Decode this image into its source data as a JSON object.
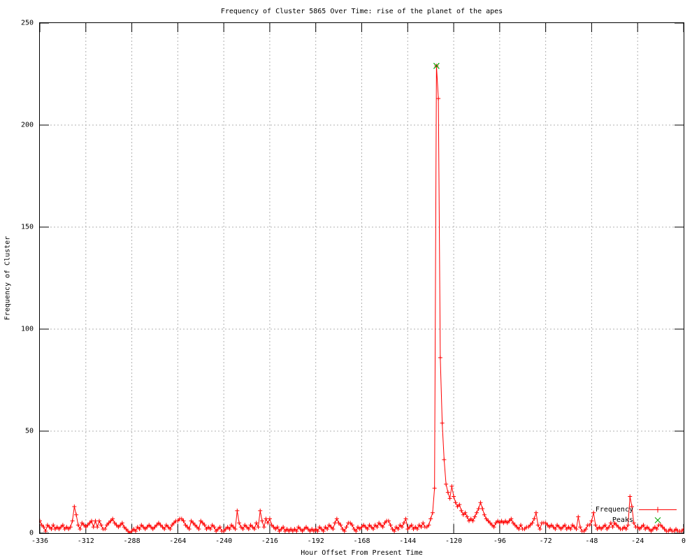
{
  "chart_data": {
    "type": "line",
    "title": "Frequency of Cluster 5865 Over Time: rise of the planet of the apes",
    "xlabel": "Hour Offset From Present Time",
    "ylabel": "Frequency of Cluster",
    "xlim": [
      -336,
      0
    ],
    "ylim": [
      0,
      250
    ],
    "x_ticks": [
      -336,
      -312,
      -288,
      -264,
      -240,
      -216,
      -192,
      -168,
      -144,
      -120,
      -96,
      -72,
      -48,
      -24,
      0
    ],
    "y_ticks": [
      0,
      50,
      100,
      150,
      200,
      250
    ],
    "grid": true,
    "legend_position": "bottom-right-inside",
    "colors": {
      "frequency": "#ff0000",
      "peaks": "#00a400",
      "grid": "#b0b0b0",
      "axis": "#000000",
      "background": "#ffffff"
    },
    "series": [
      {
        "name": "Frequency",
        "style": "linespoints",
        "marker": "plus",
        "color": "#ff0000",
        "x_start": -336,
        "x_step": 1,
        "values": [
          6,
          4,
          3,
          1,
          4,
          3,
          2,
          4,
          2,
          3,
          2,
          3,
          4,
          2,
          3,
          2,
          3,
          6,
          13,
          9,
          4,
          2,
          5,
          4,
          3,
          4,
          5,
          6,
          3,
          6,
          3,
          6,
          4,
          2,
          2,
          4,
          5,
          6,
          7,
          5,
          4,
          3,
          4,
          5,
          3,
          2,
          1,
          0,
          1,
          2,
          1,
          3,
          2,
          4,
          3,
          2,
          3,
          4,
          3,
          2,
          3,
          4,
          5,
          4,
          3,
          2,
          4,
          3,
          2,
          4,
          5,
          6,
          6,
          7,
          7,
          6,
          4,
          3,
          2,
          6,
          5,
          4,
          3,
          2,
          6,
          5,
          4,
          2,
          3,
          2,
          4,
          3,
          1,
          2,
          3,
          1,
          1,
          2,
          3,
          2,
          4,
          3,
          2,
          11,
          5,
          3,
          2,
          4,
          3,
          2,
          4,
          3,
          2,
          5,
          3,
          11,
          6,
          3,
          7,
          5,
          7,
          4,
          3,
          2,
          3,
          1,
          2,
          3,
          1,
          2,
          1,
          2,
          1,
          2,
          1,
          3,
          2,
          1,
          2,
          3,
          2,
          1,
          2,
          1,
          2,
          1,
          3,
          2,
          1,
          3,
          2,
          4,
          3,
          2,
          5,
          7,
          5,
          4,
          2,
          1,
          3,
          5,
          5,
          4,
          2,
          1,
          3,
          2,
          3,
          4,
          3,
          2,
          4,
          3,
          2,
          4,
          3,
          5,
          4,
          3,
          5,
          6,
          6,
          4,
          2,
          1,
          3,
          2,
          4,
          3,
          5,
          7,
          2,
          3,
          4,
          2,
          3,
          2,
          4,
          3,
          5,
          3,
          3,
          4,
          7,
          10,
          22,
          229,
          213,
          86,
          54,
          36,
          24,
          20,
          17,
          23,
          18,
          15,
          13,
          14,
          11,
          9,
          10,
          8,
          6,
          7,
          6,
          8,
          10,
          12,
          15,
          12,
          9,
          7,
          6,
          5,
          4,
          3,
          5,
          6,
          5,
          6,
          5,
          6,
          5,
          6,
          7,
          5,
          4,
          3,
          2,
          4,
          2,
          2,
          3,
          3,
          4,
          5,
          7,
          10,
          4,
          2,
          5,
          5,
          5,
          4,
          3,
          4,
          3,
          2,
          4,
          3,
          2,
          3,
          4,
          2,
          3,
          2,
          4,
          3,
          2,
          8,
          3,
          1,
          1,
          2,
          4,
          4,
          6,
          10,
          4,
          2,
          3,
          2,
          3,
          4,
          2,
          3,
          5,
          3,
          5,
          4,
          3,
          2,
          2,
          3,
          2,
          4,
          18,
          13,
          5,
          3,
          3,
          2,
          3,
          4,
          2,
          3,
          2,
          1,
          2,
          3,
          2,
          4,
          4,
          3,
          2,
          1,
          1,
          2,
          1,
          1,
          2,
          1,
          1,
          1,
          2
        ]
      },
      {
        "name": "Peaks",
        "style": "points",
        "marker": "cross",
        "color": "#00a400",
        "points": [
          [
            -129,
            229
          ]
        ]
      }
    ]
  }
}
